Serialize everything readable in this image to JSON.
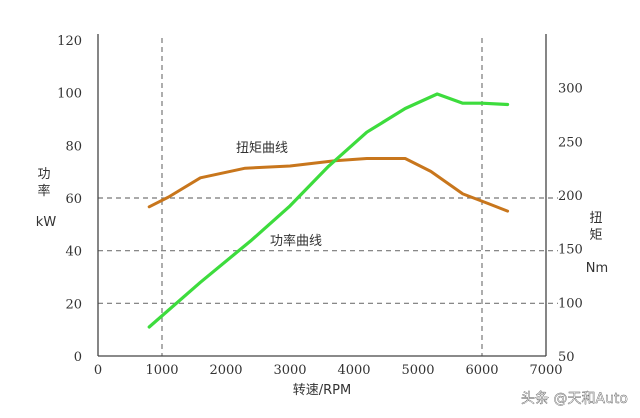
{
  "chart_data": {
    "type": "line",
    "x_axis": {
      "label": "转速/RPM",
      "ticks": [
        0,
        1000,
        2000,
        3000,
        4000,
        5000,
        6000,
        7000
      ],
      "range": [
        0,
        7000
      ]
    },
    "y_left": {
      "label_top": "功率",
      "label_bottom": "kW",
      "ticks": [
        0,
        20,
        40,
        60,
        80,
        100,
        120
      ],
      "range": [
        0,
        120
      ]
    },
    "y_right": {
      "label_top": "扭矩",
      "label_bottom": "Nm",
      "ticks": [
        50,
        100,
        150,
        200,
        250,
        300
      ],
      "range": [
        50,
        350
      ]
    },
    "grid": {
      "vertical": [
        1000,
        6000
      ],
      "horizontal": [
        20,
        40,
        60
      ]
    },
    "series": [
      {
        "name": "扭矩曲线",
        "axis": "right",
        "color": "#c8761c",
        "x": [
          800,
          1100,
          1600,
          2300,
          3000,
          3700,
          4200,
          4800,
          5200,
          5700,
          6100,
          6400
        ],
        "y": [
          189,
          198,
          216,
          225,
          227,
          232,
          234,
          234,
          222,
          201,
          192,
          185
        ]
      },
      {
        "name": "功率曲线",
        "axis": "left",
        "color": "#3ddc3d",
        "x": [
          800,
          1600,
          2400,
          3000,
          3600,
          4200,
          4800,
          5300,
          5700,
          6000,
          6400
        ],
        "y": [
          11,
          28,
          44,
          57,
          72,
          85,
          94,
          99.5,
          96,
          96,
          95.5
        ]
      }
    ],
    "annotations": [
      {
        "text": "扭矩曲线",
        "series": 0
      },
      {
        "text": "功率曲线",
        "series": 1
      }
    ]
  },
  "watermark": "头条 @天和Auto"
}
